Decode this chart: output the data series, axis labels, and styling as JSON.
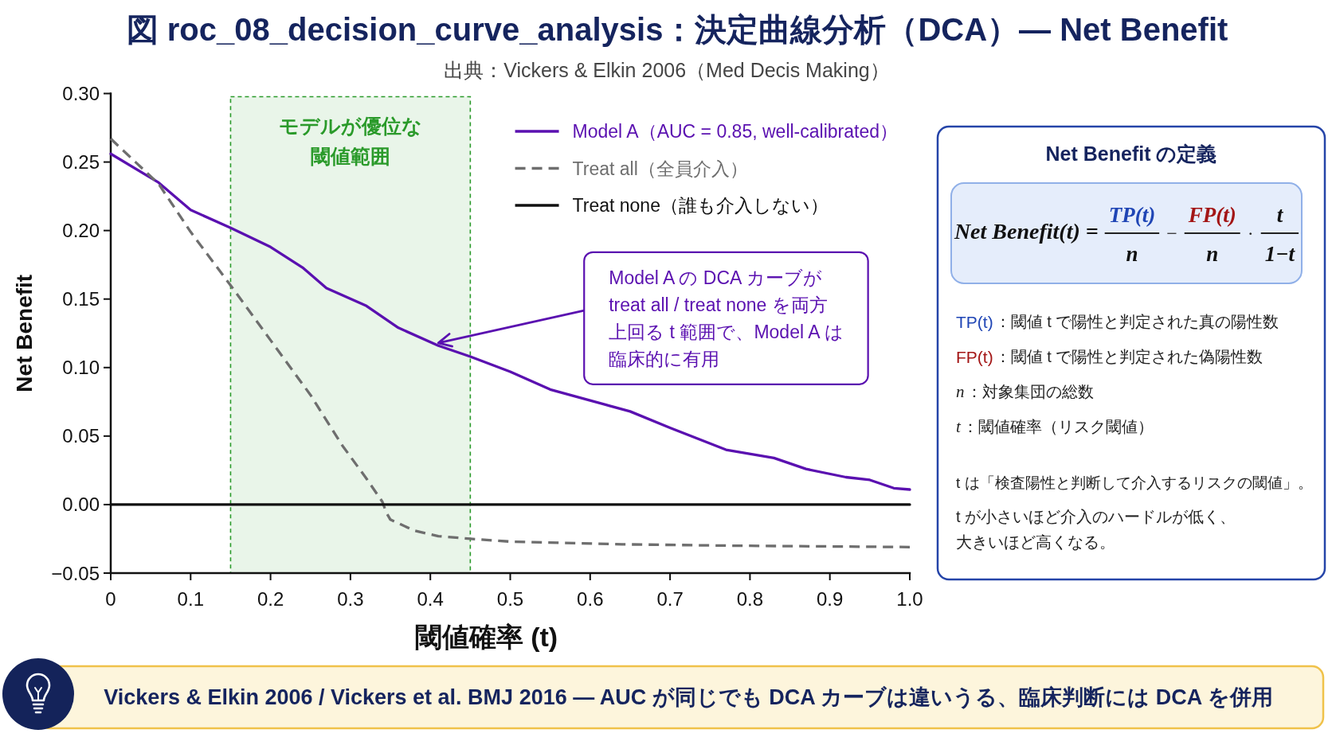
{
  "chart_data": [
    {
      "type": "line",
      "title": "図 roc_08_decision_curve_analysis：決定曲線分析（DCA）— Net Benefit",
      "subtitle": "出典：Vickers & Elkin 2006（Med Decis Making）",
      "xlabel": "閾値確率 (t)",
      "ylabel": "Net Benefit",
      "xlim": [
        0,
        1
      ],
      "ylim": [
        -0.05,
        0.3
      ],
      "xticks": [
        0,
        0.1,
        0.2,
        0.3,
        0.4,
        0.5,
        0.6,
        0.7,
        0.8,
        0.9,
        {
          "value": 1,
          "label": "1.0"
        }
      ],
      "yticks": [
        {
          "value": -0.05,
          "label": "−0.05"
        },
        {
          "value": 0,
          "label": "0.00"
        },
        0.05,
        {
          "value": 0.1,
          "label": "0.10"
        },
        0.15,
        {
          "value": 0.2,
          "label": "0.20"
        },
        0.25,
        {
          "value": 0.3,
          "label": "0.30"
        }
      ],
      "legend": "top right",
      "series": [
        {
          "name": "Model A（AUC = 0.85, well-calibrated）",
          "color": "#5a10b0",
          "line_style": "solid",
          "x": [
            0,
            0.06,
            0.1,
            0.15,
            0.2,
            0.24,
            0.27,
            0.32,
            0.36,
            0.41,
            0.45,
            0.5,
            0.55,
            0.6,
            0.65,
            0.7,
            0.77,
            0.83,
            0.87,
            0.92,
            0.95,
            0.98,
            1.0
          ],
          "values": [
            0.256,
            0.235,
            0.215,
            0.202,
            0.188,
            0.173,
            0.158,
            0.145,
            0.129,
            0.116,
            0.108,
            0.097,
            0.084,
            0.076,
            0.068,
            0.056,
            0.04,
            0.034,
            0.026,
            0.02,
            0.018,
            0.012,
            0.011
          ]
        },
        {
          "name": "Treat all（全員介入）",
          "color": "#6e6e6e",
          "line_style": "dashed",
          "x": [
            0,
            0.06,
            0.1,
            0.15,
            0.2,
            0.25,
            0.29,
            0.32,
            0.34,
            0.345,
            0.35,
            0.38,
            0.41,
            0.45,
            0.5,
            0.64,
            0.78,
            1.0
          ],
          "values": [
            0.267,
            0.234,
            0.199,
            0.16,
            0.12,
            0.08,
            0.043,
            0.019,
            0.002,
            -0.006,
            -0.011,
            -0.019,
            -0.023,
            -0.025,
            -0.027,
            -0.029,
            -0.03,
            -0.031
          ]
        },
        {
          "name": "Treat none（誰も介入しない）",
          "color": "#111111",
          "line_style": "solid",
          "x": [
            0,
            1
          ],
          "values": [
            0,
            0
          ]
        }
      ],
      "bands": [
        {
          "axis": "x",
          "from": 0.15,
          "to": 0.45,
          "label": "モデルが優位な閾値範囲",
          "color": "#2a9a2a"
        }
      ],
      "annotations": [
        {
          "text": "Model A の DCA カーブが treat all / treat none を両方上回る t 範囲で、Model A は臨床的に有用",
          "x": 0.41,
          "y": 0.118
        },
        "Vickers & Elkin 2006 / Vickers et al. BMJ 2016 — AUC が同じでも DCA カーブは違いうる、臨床判断には DCA を併用"
      ]
    },
    {
      "type": "other",
      "title": "Net Benefit の定義",
      "annotations": [
        "Net Benefit(t) =",
        "TP(t)",
        "n",
        "−",
        "FP(t)",
        "n",
        "·",
        "t",
        "1−t",
        "TP(t)：閾値 t で陽性と判定された真の陽性数",
        "FP(t)：閾値 t で陽性と判定された偽陽性数",
        "n：対象集団の総数",
        "t：閾値確率（リスク閾値）",
        "t は「検査陽性と判断して介入するリスクの閾値」。",
        "t が小さいほど介入のハードルが低く、",
        "大きいほど高くなる。"
      ]
    }
  ]
}
